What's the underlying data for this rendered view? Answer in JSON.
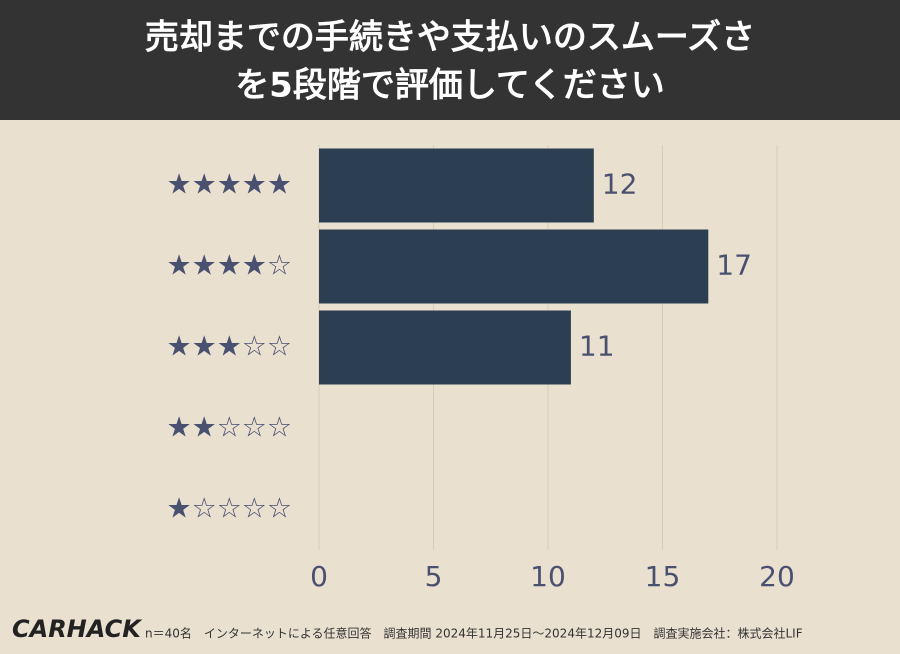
{
  "chart_data": {
    "type": "bar",
    "orientation": "horizontal",
    "title": [
      "売却までの手続きや支払いのスムーズさ",
      "を5段階で評価してください"
    ],
    "categories": [
      "★★★★★",
      "★★★★☆",
      "★★★☆☆",
      "★★☆☆☆",
      "★☆☆☆☆"
    ],
    "values": [
      12,
      17,
      11,
      0,
      0
    ],
    "color": "#2c3e52",
    "xlim": [
      0,
      20
    ],
    "xticks": [
      0,
      5,
      10,
      15,
      20
    ],
    "grid": true
  },
  "footer": {
    "logo": "CARHACK",
    "note": "n＝40名　インターネットによる任意回答　調査期間 2024年11月25日〜2024年12月09日　調査実施会社：株式会社LIF"
  }
}
